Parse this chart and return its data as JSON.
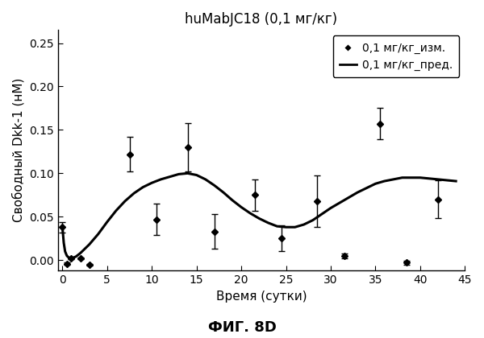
{
  "title": "huMabJC18 (0,1 мг/кг)",
  "xlabel": "Время (сутки)",
  "ylabel": "Свободный Dkk-1 (нМ)",
  "footer": "ФИГ. 8D",
  "xlim": [
    -0.5,
    45
  ],
  "ylim": [
    -0.012,
    0.265
  ],
  "xticks": [
    0,
    5,
    10,
    15,
    20,
    25,
    30,
    35,
    40,
    45
  ],
  "yticks": [
    0.0,
    0.05,
    0.1,
    0.15,
    0.2,
    0.25
  ],
  "scatter_x": [
    0.0,
    0.5,
    1.0,
    2.0,
    3.0,
    7.5,
    10.5,
    14.0,
    17.0,
    21.5,
    24.5,
    28.5,
    31.5,
    35.5,
    38.5,
    42.0
  ],
  "scatter_y": [
    0.038,
    -0.004,
    0.002,
    0.002,
    -0.005,
    0.122,
    0.047,
    0.13,
    0.033,
    0.075,
    0.025,
    0.068,
    0.005,
    0.157,
    -0.003,
    0.07
  ],
  "scatter_yerr_lo": [
    0.006,
    0.001,
    0.001,
    0.001,
    0.001,
    0.02,
    0.018,
    0.028,
    0.02,
    0.018,
    0.015,
    0.03,
    0.003,
    0.018,
    0.002,
    0.022
  ],
  "scatter_yerr_hi": [
    0.006,
    0.001,
    0.001,
    0.001,
    0.001,
    0.02,
    0.018,
    0.028,
    0.02,
    0.018,
    0.015,
    0.03,
    0.003,
    0.018,
    0.002,
    0.022
  ],
  "line_x": [
    0.0,
    0.15,
    0.3,
    0.5,
    0.7,
    1.0,
    1.5,
    2.0,
    3.0,
    4.0,
    5.0,
    6.0,
    7.0,
    8.0,
    9.0,
    10.0,
    11.0,
    12.0,
    13.0,
    14.0,
    15.0,
    16.0,
    17.0,
    18.0,
    19.0,
    20.0,
    21.0,
    22.0,
    23.0,
    24.0,
    25.0,
    26.0,
    27.0,
    28.0,
    29.0,
    30.0,
    31.0,
    32.0,
    33.0,
    34.0,
    35.0,
    36.0,
    37.0,
    38.0,
    39.0,
    40.0,
    41.0,
    42.0,
    43.0,
    44.0
  ],
  "line_y": [
    0.038,
    0.02,
    0.01,
    0.005,
    0.003,
    0.002,
    0.004,
    0.008,
    0.018,
    0.03,
    0.044,
    0.057,
    0.068,
    0.077,
    0.084,
    0.089,
    0.093,
    0.096,
    0.099,
    0.1,
    0.098,
    0.093,
    0.086,
    0.078,
    0.069,
    0.061,
    0.054,
    0.048,
    0.043,
    0.039,
    0.038,
    0.038,
    0.041,
    0.046,
    0.053,
    0.06,
    0.066,
    0.072,
    0.078,
    0.083,
    0.088,
    0.091,
    0.093,
    0.095,
    0.095,
    0.095,
    0.094,
    0.093,
    0.092,
    0.091
  ],
  "legend_scatter_label": "0,1 мг/кг_изм.",
  "legend_line_label": "0,1 мг/кг_пред.",
  "scatter_color": "black",
  "line_color": "black",
  "background_color": "white",
  "title_fontsize": 12,
  "label_fontsize": 11,
  "tick_fontsize": 10,
  "legend_fontsize": 10,
  "footer_fontsize": 13
}
